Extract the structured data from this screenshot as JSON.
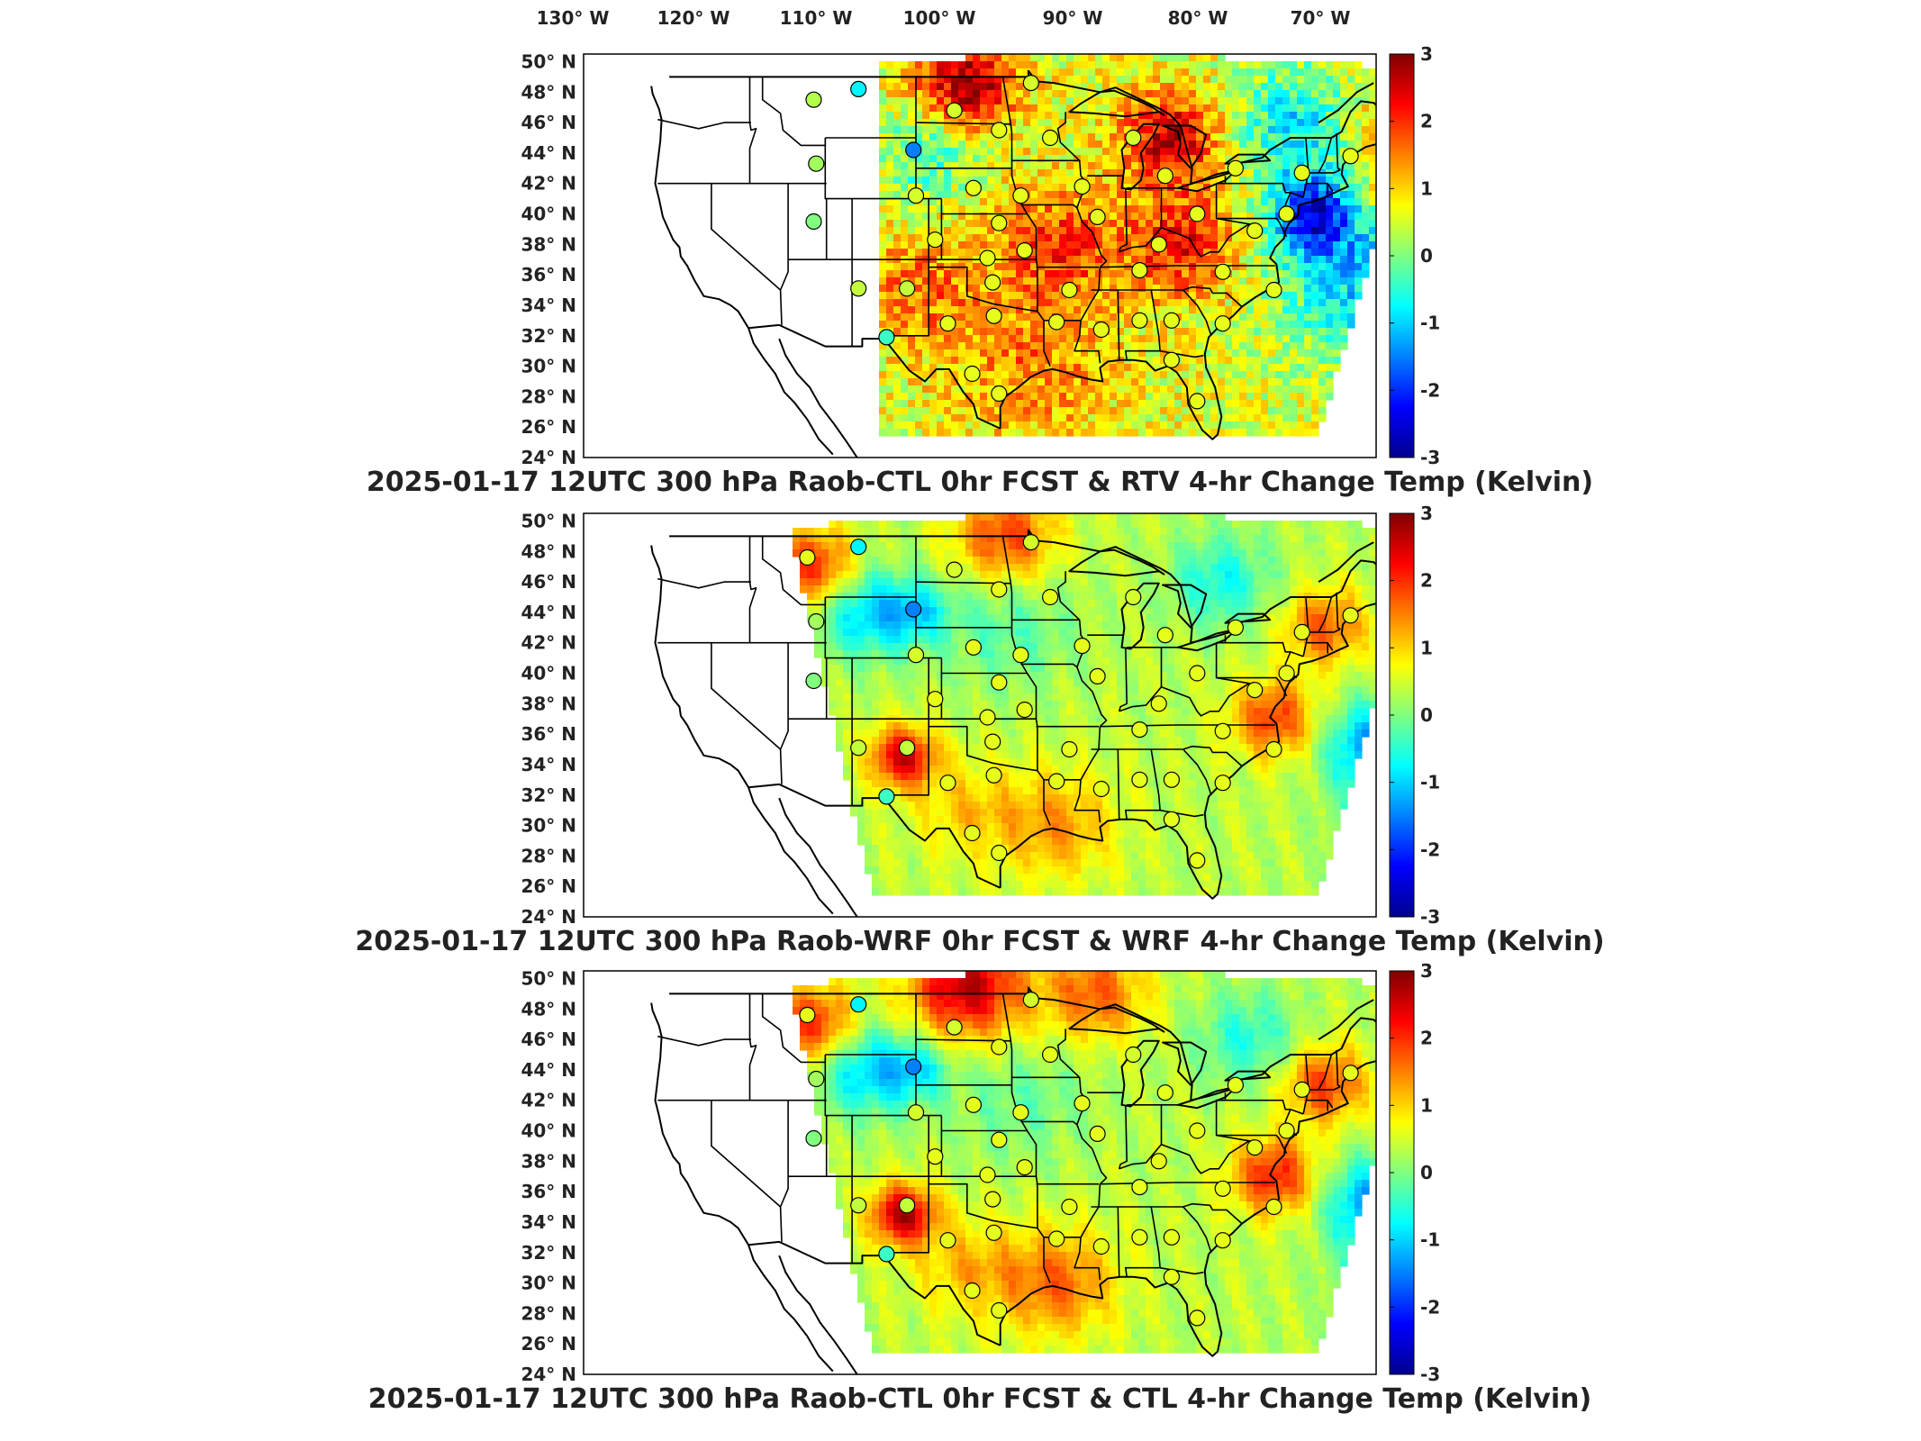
{
  "longitude_labels": [
    "130° W",
    "120° W",
    "110° W",
    "100° W",
    "90° W",
    "80° W",
    "70° W"
  ],
  "latitude_labels": [
    "50° N",
    "48° N",
    "46° N",
    "44° N",
    "42° N",
    "40° N",
    "38° N",
    "36° N",
    "34° N",
    "32° N",
    "30° N",
    "28° N",
    "26° N",
    "24° N"
  ],
  "colorbar": {
    "ticks": [
      "3",
      "2",
      "1",
      "0",
      "-1",
      "-2",
      "-3"
    ],
    "colormap": [
      "#00008f",
      "#0000ff",
      "#0080ff",
      "#00ffff",
      "#80ff80",
      "#ffff00",
      "#ff8000",
      "#ff0000",
      "#800000"
    ],
    "range": [
      -3,
      3
    ],
    "units": "Kelvin"
  },
  "colors": {
    "map_lines": "#000000",
    "land": "#ffffff",
    "frame": "#000000"
  },
  "panels": [
    {
      "title": "2025-01-17 12UTC 300 hPa Raob-CTL 0hr FCST & RTV 4-hr Change Temp (Kelvin)",
      "field": "RTV 4-hr Change Temp",
      "pattern": "noisy",
      "stations": [
        {
          "lon": -112.0,
          "lat": 47.5,
          "value": 0.3
        },
        {
          "lon": -108.5,
          "lat": 48.2,
          "value": -0.8
        },
        {
          "lon": -111.8,
          "lat": 43.3,
          "value": 0.2
        },
        {
          "lon": -112.0,
          "lat": 39.5,
          "value": 0.0
        },
        {
          "lon": -104.2,
          "lat": 44.2,
          "value": -1.5
        },
        {
          "lon": -101.0,
          "lat": 46.8,
          "value": 0.5
        },
        {
          "lon": -97.5,
          "lat": 45.5,
          "value": 0.6
        },
        {
          "lon": -93.5,
          "lat": 45.0,
          "value": 0.6
        },
        {
          "lon": -95.0,
          "lat": 48.6,
          "value": 0.5
        },
        {
          "lon": -104.0,
          "lat": 41.2,
          "value": 0.5
        },
        {
          "lon": -99.5,
          "lat": 41.7,
          "value": 0.6
        },
        {
          "lon": -95.8,
          "lat": 41.2,
          "value": 0.6
        },
        {
          "lon": -97.5,
          "lat": 39.4,
          "value": 0.6
        },
        {
          "lon": -102.5,
          "lat": 38.3,
          "value": 0.6
        },
        {
          "lon": -98.4,
          "lat": 37.1,
          "value": 0.6
        },
        {
          "lon": -95.5,
          "lat": 37.6,
          "value": 0.6
        },
        {
          "lon": -108.5,
          "lat": 35.1,
          "value": 0.4
        },
        {
          "lon": -104.7,
          "lat": 35.1,
          "value": 0.4
        },
        {
          "lon": -98.0,
          "lat": 35.5,
          "value": 0.6
        },
        {
          "lon": -101.5,
          "lat": 32.8,
          "value": 0.6
        },
        {
          "lon": -97.9,
          "lat": 33.3,
          "value": 0.6
        },
        {
          "lon": -106.3,
          "lat": 31.9,
          "value": -0.4
        },
        {
          "lon": -97.5,
          "lat": 28.2,
          "value": 0.6
        },
        {
          "lon": -99.6,
          "lat": 29.5,
          "value": 0.6
        },
        {
          "lon": -93.0,
          "lat": 32.9,
          "value": 0.6
        },
        {
          "lon": -89.5,
          "lat": 32.4,
          "value": 0.6
        },
        {
          "lon": -86.5,
          "lat": 33.0,
          "value": 0.6
        },
        {
          "lon": -84.0,
          "lat": 33.0,
          "value": 0.6
        },
        {
          "lon": -92.0,
          "lat": 35.0,
          "value": 0.6
        },
        {
          "lon": -86.5,
          "lat": 36.3,
          "value": 0.6
        },
        {
          "lon": -89.8,
          "lat": 39.8,
          "value": 0.6
        },
        {
          "lon": -91.0,
          "lat": 41.8,
          "value": 0.6
        },
        {
          "lon": -87.0,
          "lat": 45.0,
          "value": 0.5
        },
        {
          "lon": -84.5,
          "lat": 42.5,
          "value": 0.6
        },
        {
          "lon": -85.0,
          "lat": 38.0,
          "value": 0.6
        },
        {
          "lon": -82.0,
          "lat": 40.0,
          "value": 0.6
        },
        {
          "lon": -80.0,
          "lat": 36.2,
          "value": 0.6
        },
        {
          "lon": -80.0,
          "lat": 32.8,
          "value": 0.6
        },
        {
          "lon": -84.0,
          "lat": 30.4,
          "value": 0.6
        },
        {
          "lon": -82.0,
          "lat": 27.7,
          "value": 0.6
        },
        {
          "lon": -77.5,
          "lat": 38.9,
          "value": 0.6
        },
        {
          "lon": -76.0,
          "lat": 35.0,
          "value": 0.6
        },
        {
          "lon": -75.0,
          "lat": 40.0,
          "value": 0.6
        },
        {
          "lon": -73.8,
          "lat": 42.7,
          "value": 0.6
        },
        {
          "lon": -70.0,
          "lat": 43.8,
          "value": 0.6
        },
        {
          "lon": -79.0,
          "lat": 43.0,
          "value": 0.6
        }
      ],
      "blobs": [
        {
          "lon": -100,
          "lat": 48.5,
          "s": 3.0,
          "a": 2.2
        },
        {
          "lon": -84,
          "lat": 45,
          "s": 3.0,
          "a": 2.0
        },
        {
          "lon": -83,
          "lat": 38,
          "s": 3.5,
          "a": 1.6
        },
        {
          "lon": -73,
          "lat": 40,
          "s": 2.5,
          "a": -2.5
        },
        {
          "lon": -69,
          "lat": 36,
          "s": 5.5,
          "a": -1.6
        },
        {
          "lon": -74,
          "lat": 46,
          "s": 4.0,
          "a": -1.4
        },
        {
          "lon": -63,
          "lat": 44,
          "s": 5.0,
          "a": 1.8
        },
        {
          "lon": -104,
          "lat": 35,
          "s": 3.5,
          "a": 1.0
        },
        {
          "lon": -93,
          "lat": 38,
          "s": 4.0,
          "a": 1.3
        },
        {
          "lon": -95,
          "lat": 30,
          "s": 5.0,
          "a": 0.9
        },
        {
          "lon": -103,
          "lat": 44,
          "s": 3.0,
          "a": -1.0
        }
      ]
    },
    {
      "title": "2025-01-17 12UTC 300 hPa Raob-WRF 0hr FCST & WRF 4-hr Change Temp (Kelvin)",
      "field": "WRF 4-hr Change Temp",
      "pattern": "smooth",
      "stations": [
        {
          "lon": -112.5,
          "lat": 47.6,
          "value": 0.6
        },
        {
          "lon": -108.5,
          "lat": 48.3,
          "value": -0.8
        },
        {
          "lon": -111.8,
          "lat": 43.4,
          "value": 0.2
        },
        {
          "lon": -112.0,
          "lat": 39.5,
          "value": 0.0
        },
        {
          "lon": -104.2,
          "lat": 44.2,
          "value": -1.5
        },
        {
          "lon": -101.0,
          "lat": 46.8,
          "value": 0.5
        },
        {
          "lon": -97.5,
          "lat": 45.5,
          "value": 0.6
        },
        {
          "lon": -93.5,
          "lat": 45.0,
          "value": 0.6
        },
        {
          "lon": -95.0,
          "lat": 48.6,
          "value": 0.5
        },
        {
          "lon": -104.0,
          "lat": 41.2,
          "value": 0.5
        },
        {
          "lon": -99.5,
          "lat": 41.7,
          "value": 0.6
        },
        {
          "lon": -95.8,
          "lat": 41.2,
          "value": 0.6
        },
        {
          "lon": -97.5,
          "lat": 39.4,
          "value": 0.6
        },
        {
          "lon": -102.5,
          "lat": 38.3,
          "value": 0.6
        },
        {
          "lon": -98.4,
          "lat": 37.1,
          "value": 0.6
        },
        {
          "lon": -95.5,
          "lat": 37.6,
          "value": 0.6
        },
        {
          "lon": -108.5,
          "lat": 35.1,
          "value": 0.4
        },
        {
          "lon": -104.7,
          "lat": 35.1,
          "value": 0.4
        },
        {
          "lon": -98.0,
          "lat": 35.5,
          "value": 0.6
        },
        {
          "lon": -101.5,
          "lat": 32.8,
          "value": 0.6
        },
        {
          "lon": -97.9,
          "lat": 33.3,
          "value": 0.6
        },
        {
          "lon": -106.3,
          "lat": 31.9,
          "value": -0.4
        },
        {
          "lon": -97.5,
          "lat": 28.2,
          "value": 0.6
        },
        {
          "lon": -99.6,
          "lat": 29.5,
          "value": 0.6
        },
        {
          "lon": -93.0,
          "lat": 32.9,
          "value": 0.6
        },
        {
          "lon": -89.5,
          "lat": 32.4,
          "value": 0.6
        },
        {
          "lon": -86.5,
          "lat": 33.0,
          "value": 0.6
        },
        {
          "lon": -84.0,
          "lat": 33.0,
          "value": 0.6
        },
        {
          "lon": -92.0,
          "lat": 35.0,
          "value": 0.6
        },
        {
          "lon": -86.5,
          "lat": 36.3,
          "value": 0.6
        },
        {
          "lon": -89.8,
          "lat": 39.8,
          "value": 0.6
        },
        {
          "lon": -91.0,
          "lat": 41.8,
          "value": 0.6
        },
        {
          "lon": -87.0,
          "lat": 45.0,
          "value": 0.5
        },
        {
          "lon": -84.5,
          "lat": 42.5,
          "value": 0.6
        },
        {
          "lon": -85.0,
          "lat": 38.0,
          "value": 0.6
        },
        {
          "lon": -82.0,
          "lat": 40.0,
          "value": 0.6
        },
        {
          "lon": -80.0,
          "lat": 36.2,
          "value": 0.6
        },
        {
          "lon": -80.0,
          "lat": 32.8,
          "value": 0.6
        },
        {
          "lon": -84.0,
          "lat": 30.4,
          "value": 0.6
        },
        {
          "lon": -82.0,
          "lat": 27.7,
          "value": 0.6
        },
        {
          "lon": -77.5,
          "lat": 38.9,
          "value": 0.6
        },
        {
          "lon": -76.0,
          "lat": 35.0,
          "value": 0.6
        },
        {
          "lon": -75.0,
          "lat": 40.0,
          "value": 0.6
        },
        {
          "lon": -73.8,
          "lat": 42.7,
          "value": 0.6
        },
        {
          "lon": -70.0,
          "lat": 43.8,
          "value": 0.6
        },
        {
          "lon": -79.0,
          "lat": 43.0,
          "value": 0.6
        }
      ],
      "blobs": [
        {
          "lon": -112,
          "lat": 47,
          "s": 2.5,
          "a": 1.8
        },
        {
          "lon": -105,
          "lat": 34.5,
          "s": 2.0,
          "a": 2.2
        },
        {
          "lon": -108,
          "lat": 44,
          "s": 3.0,
          "a": -1.3
        },
        {
          "lon": -104,
          "lat": 44,
          "s": 2.0,
          "a": -1.0
        },
        {
          "lon": -97,
          "lat": 49,
          "s": 3.0,
          "a": 1.6
        },
        {
          "lon": -76,
          "lat": 37,
          "s": 2.5,
          "a": 1.6
        },
        {
          "lon": -72,
          "lat": 43,
          "s": 2.5,
          "a": 1.4
        },
        {
          "lon": -68,
          "lat": 35,
          "s": 3.0,
          "a": -1.8
        },
        {
          "lon": -66,
          "lat": 29,
          "s": 3.0,
          "a": -1.6
        },
        {
          "lon": -80,
          "lat": 46,
          "s": 3.0,
          "a": -1.0
        },
        {
          "lon": -63,
          "lat": 37,
          "s": 2.0,
          "a": 1.5
        },
        {
          "lon": -93,
          "lat": 30,
          "s": 3.5,
          "a": 1.0
        },
        {
          "lon": -100,
          "lat": 31,
          "s": 3.0,
          "a": 0.7
        },
        {
          "lon": -97,
          "lat": 43,
          "s": 4.0,
          "a": -0.6
        }
      ]
    },
    {
      "title": "2025-01-17 12UTC 300 hPa Raob-CTL 0hr FCST & CTL 4-hr Change Temp (Kelvin)",
      "field": "CTL 4-hr Change Temp",
      "pattern": "smooth",
      "stations": [
        {
          "lon": -112.5,
          "lat": 47.6,
          "value": 0.6
        },
        {
          "lon": -108.5,
          "lat": 48.3,
          "value": -0.8
        },
        {
          "lon": -111.8,
          "lat": 43.4,
          "value": 0.2
        },
        {
          "lon": -112.0,
          "lat": 39.5,
          "value": 0.0
        },
        {
          "lon": -104.2,
          "lat": 44.2,
          "value": -1.5
        },
        {
          "lon": -101.0,
          "lat": 46.8,
          "value": 0.5
        },
        {
          "lon": -97.5,
          "lat": 45.5,
          "value": 0.6
        },
        {
          "lon": -93.5,
          "lat": 45.0,
          "value": 0.6
        },
        {
          "lon": -95.0,
          "lat": 48.6,
          "value": 0.5
        },
        {
          "lon": -104.0,
          "lat": 41.2,
          "value": 0.5
        },
        {
          "lon": -99.5,
          "lat": 41.7,
          "value": 0.6
        },
        {
          "lon": -95.8,
          "lat": 41.2,
          "value": 0.6
        },
        {
          "lon": -97.5,
          "lat": 39.4,
          "value": 0.6
        },
        {
          "lon": -102.5,
          "lat": 38.3,
          "value": 0.6
        },
        {
          "lon": -98.4,
          "lat": 37.1,
          "value": 0.6
        },
        {
          "lon": -95.5,
          "lat": 37.6,
          "value": 0.6
        },
        {
          "lon": -108.5,
          "lat": 35.1,
          "value": 0.4
        },
        {
          "lon": -104.7,
          "lat": 35.1,
          "value": 0.4
        },
        {
          "lon": -98.0,
          "lat": 35.5,
          "value": 0.6
        },
        {
          "lon": -101.5,
          "lat": 32.8,
          "value": 0.6
        },
        {
          "lon": -97.9,
          "lat": 33.3,
          "value": 0.6
        },
        {
          "lon": -106.3,
          "lat": 31.9,
          "value": -0.4
        },
        {
          "lon": -97.5,
          "lat": 28.2,
          "value": 0.6
        },
        {
          "lon": -99.6,
          "lat": 29.5,
          "value": 0.6
        },
        {
          "lon": -93.0,
          "lat": 32.9,
          "value": 0.6
        },
        {
          "lon": -89.5,
          "lat": 32.4,
          "value": 0.6
        },
        {
          "lon": -86.5,
          "lat": 33.0,
          "value": 0.6
        },
        {
          "lon": -84.0,
          "lat": 33.0,
          "value": 0.6
        },
        {
          "lon": -92.0,
          "lat": 35.0,
          "value": 0.6
        },
        {
          "lon": -86.5,
          "lat": 36.3,
          "value": 0.6
        },
        {
          "lon": -89.8,
          "lat": 39.8,
          "value": 0.6
        },
        {
          "lon": -91.0,
          "lat": 41.8,
          "value": 0.6
        },
        {
          "lon": -87.0,
          "lat": 45.0,
          "value": 0.5
        },
        {
          "lon": -84.5,
          "lat": 42.5,
          "value": 0.6
        },
        {
          "lon": -85.0,
          "lat": 38.0,
          "value": 0.6
        },
        {
          "lon": -82.0,
          "lat": 40.0,
          "value": 0.6
        },
        {
          "lon": -80.0,
          "lat": 36.2,
          "value": 0.6
        },
        {
          "lon": -80.0,
          "lat": 32.8,
          "value": 0.6
        },
        {
          "lon": -84.0,
          "lat": 30.4,
          "value": 0.6
        },
        {
          "lon": -82.0,
          "lat": 27.7,
          "value": 0.6
        },
        {
          "lon": -77.5,
          "lat": 38.9,
          "value": 0.6
        },
        {
          "lon": -76.0,
          "lat": 35.0,
          "value": 0.6
        },
        {
          "lon": -75.0,
          "lat": 40.0,
          "value": 0.6
        },
        {
          "lon": -73.8,
          "lat": 42.7,
          "value": 0.6
        },
        {
          "lon": -70.0,
          "lat": 43.8,
          "value": 0.6
        },
        {
          "lon": -79.0,
          "lat": 43.0,
          "value": 0.6
        }
      ],
      "blobs": [
        {
          "lon": -112,
          "lat": 47,
          "s": 2.5,
          "a": 1.8
        },
        {
          "lon": -105,
          "lat": 34.5,
          "s": 2.0,
          "a": 2.4
        },
        {
          "lon": -108,
          "lat": 44,
          "s": 3.0,
          "a": -1.3
        },
        {
          "lon": -104,
          "lat": 44,
          "s": 2.0,
          "a": -1.0
        },
        {
          "lon": -100,
          "lat": 49.5,
          "s": 3.5,
          "a": 2.3
        },
        {
          "lon": -90,
          "lat": 49,
          "s": 3.0,
          "a": 1.4
        },
        {
          "lon": -76,
          "lat": 37,
          "s": 2.5,
          "a": 1.8
        },
        {
          "lon": -72,
          "lat": 43,
          "s": 2.5,
          "a": 1.6
        },
        {
          "lon": -68,
          "lat": 35,
          "s": 3.0,
          "a": -1.8
        },
        {
          "lon": -66,
          "lat": 29,
          "s": 3.0,
          "a": -1.8
        },
        {
          "lon": -78,
          "lat": 46,
          "s": 3.0,
          "a": -0.9
        },
        {
          "lon": -63,
          "lat": 37,
          "s": 2.0,
          "a": 1.5
        },
        {
          "lon": -93,
          "lat": 30,
          "s": 3.5,
          "a": 1.3
        },
        {
          "lon": -100,
          "lat": 31,
          "s": 3.0,
          "a": 0.8
        },
        {
          "lon": -96,
          "lat": 42,
          "s": 4.0,
          "a": -0.5
        }
      ]
    }
  ]
}
